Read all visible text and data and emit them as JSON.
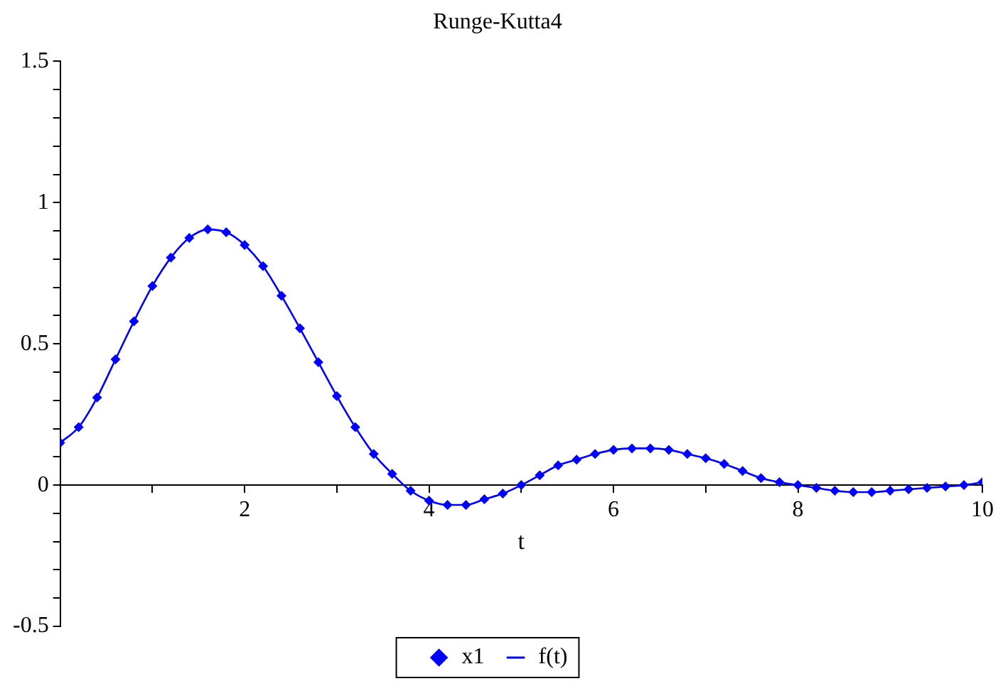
{
  "chart_data": {
    "type": "line",
    "title": "Runge-Kutta4",
    "xlabel": "t",
    "x": [
      0,
      0.2,
      0.4,
      0.6,
      0.8,
      1,
      1.2,
      1.4,
      1.6,
      1.8,
      2,
      2.2,
      2.4,
      2.6,
      2.8,
      3,
      3.2,
      3.4,
      3.6,
      3.8,
      4,
      4.2,
      4.4,
      4.6,
      4.8,
      5,
      5.2,
      5.4,
      5.6,
      5.8,
      6,
      6.2,
      6.4,
      6.6,
      6.8,
      7,
      7.2,
      7.4,
      7.6,
      7.8,
      8,
      8.2,
      8.4,
      8.6,
      8.8,
      9,
      9.2,
      9.4,
      9.6,
      9.8,
      10
    ],
    "series": [
      {
        "name": "x1",
        "type": "scatter",
        "marker": "diamond",
        "color": "#0000ff",
        "values": [
          0.15,
          0.205,
          0.31,
          0.445,
          0.58,
          0.705,
          0.805,
          0.875,
          0.905,
          0.895,
          0.85,
          0.775,
          0.67,
          0.555,
          0.435,
          0.315,
          0.205,
          0.11,
          0.04,
          -0.02,
          -0.055,
          -0.07,
          -0.07,
          -0.05,
          -0.03,
          0,
          0.035,
          0.07,
          0.09,
          0.11,
          0.125,
          0.13,
          0.13,
          0.125,
          0.11,
          0.095,
          0.075,
          0.05,
          0.025,
          0.01,
          0,
          -0.01,
          -0.02,
          -0.025,
          -0.025,
          -0.02,
          -0.015,
          -0.01,
          -0.005,
          0,
          0.01
        ]
      },
      {
        "name": "f(t)",
        "type": "line",
        "marker": "none",
        "line_style": "solid",
        "color": "#0000ff",
        "values": [
          0.15,
          0.205,
          0.31,
          0.445,
          0.58,
          0.705,
          0.805,
          0.875,
          0.905,
          0.895,
          0.85,
          0.775,
          0.67,
          0.555,
          0.435,
          0.315,
          0.205,
          0.11,
          0.04,
          -0.02,
          -0.055,
          -0.07,
          -0.07,
          -0.05,
          -0.03,
          0,
          0.035,
          0.07,
          0.09,
          0.11,
          0.125,
          0.13,
          0.13,
          0.125,
          0.11,
          0.095,
          0.075,
          0.05,
          0.025,
          0.01,
          0,
          -0.01,
          -0.02,
          -0.025,
          -0.025,
          -0.02,
          -0.015,
          -0.01,
          -0.005,
          0,
          0.01
        ]
      }
    ],
    "xlim": [
      0,
      10
    ],
    "xticks": [
      {
        "value": 1,
        "label": null
      },
      2,
      {
        "value": 3,
        "label": null
      },
      4,
      {
        "value": 5,
        "label": null
      },
      6,
      {
        "value": 7,
        "label": null
      },
      8,
      {
        "value": 9,
        "label": null
      },
      10
    ],
    "ylim": [
      -0.5,
      1.5
    ],
    "yticks": [
      -0.5,
      {
        "value": -0.4,
        "label": null
      },
      {
        "value": -0.3,
        "label": null
      },
      {
        "value": -0.2,
        "label": null
      },
      {
        "value": -0.1,
        "label": null
      },
      0,
      {
        "value": 0.1,
        "label": null
      },
      {
        "value": 0.2,
        "label": null
      },
      {
        "value": 0.3,
        "label": null
      },
      {
        "value": 0.4,
        "label": null
      },
      0.5,
      {
        "value": 0.6,
        "label": null
      },
      {
        "value": 0.7,
        "label": null
      },
      {
        "value": 0.8,
        "label": null
      },
      {
        "value": 0.9,
        "label": null
      },
      1,
      {
        "value": 1.1,
        "label": null
      },
      {
        "value": 1.2,
        "label": null
      },
      {
        "value": 1.3,
        "label": null
      },
      {
        "value": 1.4,
        "label": null
      },
      1.5
    ],
    "grid": false,
    "legend": "bottom"
  }
}
